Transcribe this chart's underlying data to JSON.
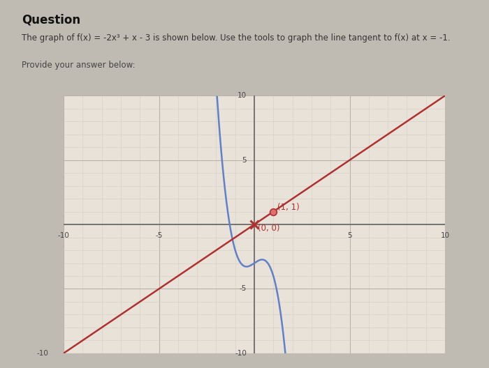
{
  "title": "Question",
  "subtitle": "The graph of f(x) = -2x³ + x - 3 is shown below. Use the tools to graph the line tangent to f(x) at x = -1.",
  "provide_label": "Provide your answer below:",
  "xlim": [
    -10,
    10
  ],
  "ylim": [
    -10,
    10
  ],
  "xtick_labels": [
    -10,
    -5,
    5,
    10
  ],
  "ytick_labels": [
    -10,
    -5,
    5,
    10
  ],
  "curve_color": "#6080c8",
  "tangent_color": "#b03030",
  "panel_bg": "#e8e2d8",
  "grid_color_minor": "#d4cec6",
  "grid_color_major": "#b8b2aa",
  "axis_color": "#666666",
  "point1_label": "(1, 1)",
  "point2_label": "(0, 0)",
  "point1": [
    1,
    1
  ],
  "point2": [
    0,
    0
  ],
  "tangent_slope": 1,
  "tangent_intercept": 0,
  "outer_bg": "#c0bbb2",
  "header_bg": "#e8e3dc",
  "title_color": "#111111",
  "subtitle_color": "#333333",
  "provide_color": "#444444"
}
